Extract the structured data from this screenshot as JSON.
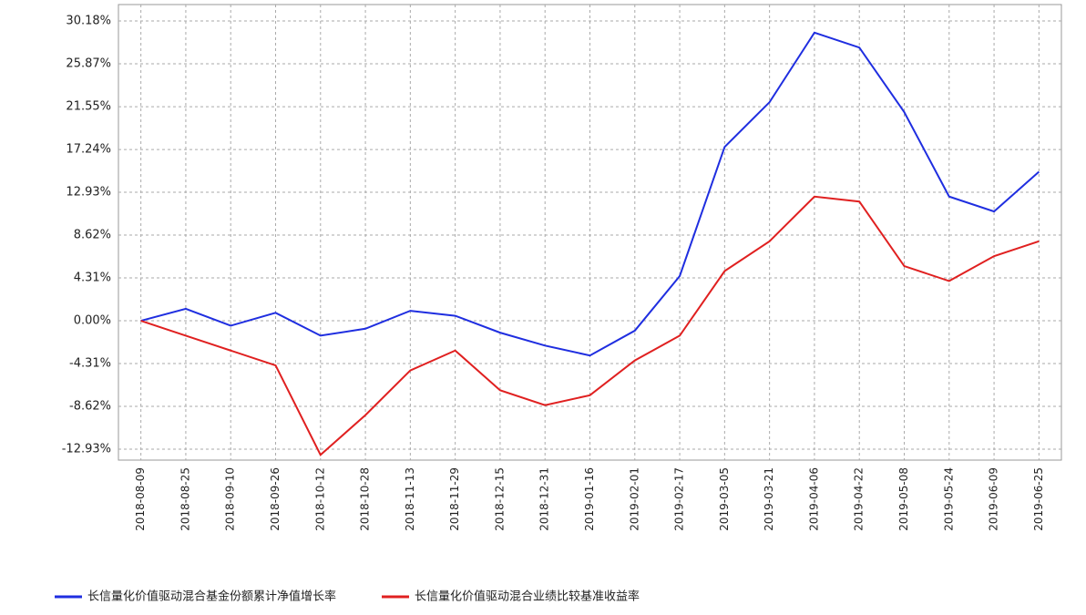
{
  "chart_data": {
    "type": "line",
    "x": [
      "2018-08-09",
      "2018-08-25",
      "2018-09-10",
      "2018-09-26",
      "2018-10-12",
      "2018-10-28",
      "2018-11-13",
      "2018-11-29",
      "2018-12-15",
      "2018-12-31",
      "2019-01-16",
      "2019-02-01",
      "2019-02-17",
      "2019-03-05",
      "2019-03-21",
      "2019-04-06",
      "2019-04-22",
      "2019-05-08",
      "2019-05-24",
      "2019-06-09",
      "2019-06-25"
    ],
    "series": [
      {
        "name": "长信量化价值驱动混合基金份额累计净值增长率",
        "color": "#1f2ee0",
        "values": [
          0,
          1.2,
          -0.5,
          0.8,
          -1.5,
          -0.8,
          1.0,
          0.5,
          -1.2,
          -2.5,
          -3.5,
          -1.0,
          4.5,
          17.5,
          22.0,
          29.0,
          27.5,
          21.0,
          12.5,
          11.0,
          15.0
        ]
      },
      {
        "name": "长信量化价值驱动混合业绩比较基准收益率",
        "color": "#e02020",
        "values": [
          0,
          -1.5,
          -3.0,
          -4.5,
          -13.5,
          -9.5,
          -5.0,
          -3.0,
          -7.0,
          -8.5,
          -7.5,
          -4.0,
          -1.5,
          5.0,
          8.0,
          12.5,
          12.0,
          5.5,
          4.0,
          6.5,
          8.0
        ]
      }
    ],
    "ylim": [
      -14.03,
      31.83
    ],
    "yticks": [
      {
        "value": -12.93,
        "label": "-12.93%"
      },
      {
        "value": -8.62,
        "label": "-8.62%"
      },
      {
        "value": -4.31,
        "label": "-4.31%"
      },
      {
        "value": 0,
        "label": "0.00%"
      },
      {
        "value": 4.31,
        "label": "4.31%"
      },
      {
        "value": 8.62,
        "label": "8.62%"
      },
      {
        "value": 12.93,
        "label": "12.93%"
      },
      {
        "value": 17.24,
        "label": "17.24%"
      },
      {
        "value": 21.55,
        "label": "21.55%"
      },
      {
        "value": 25.87,
        "label": "25.87%"
      },
      {
        "value": 30.18,
        "label": "30.18%"
      }
    ],
    "grid": true
  }
}
